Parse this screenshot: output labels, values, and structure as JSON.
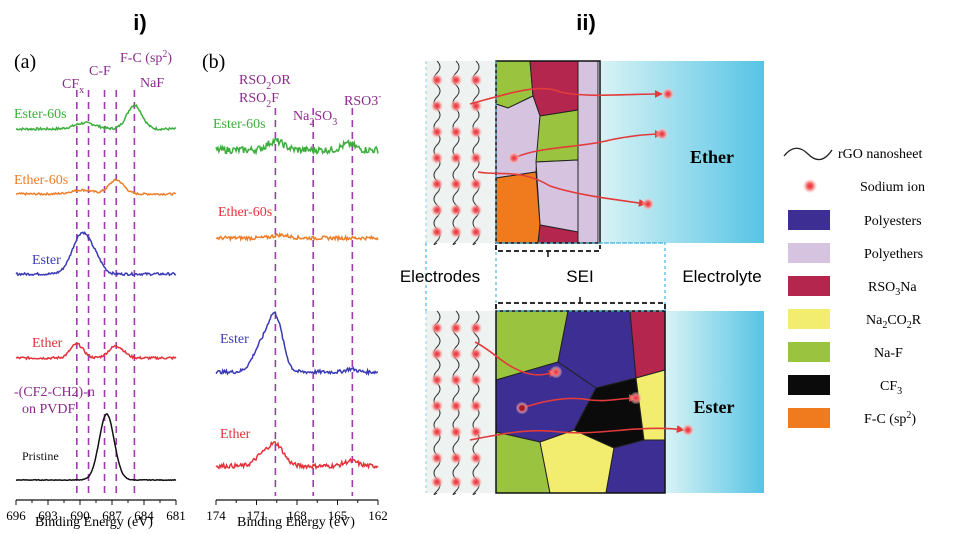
{
  "panel_labels": {
    "left": "i)",
    "right": "ii)"
  },
  "chart_data": [
    {
      "type": "line",
      "subplot": "(a)",
      "xlabel": "Binding Energy (eV)",
      "x_reversed": true,
      "xlim": [
        696,
        681
      ],
      "xticks": [
        "696",
        "693",
        "690",
        "687",
        "684",
        "681"
      ],
      "xtick_values": [
        696,
        693,
        690,
        687,
        684,
        681
      ],
      "reference_lines": [
        {
          "name": "CF_x",
          "label": "CF",
          "sub": "x",
          "x": 690.3
        },
        {
          "name": "C-F",
          "label": "C-F",
          "x": 689.2
        },
        {
          "name": "F-C (sp2)",
          "label": "F-C (sp",
          "sup": "2",
          "tail": ")",
          "x": 686.6
        },
        {
          "name": "NaF",
          "label": "NaF",
          "x": 684.9
        },
        {
          "name": "PVDF",
          "label": "",
          "x": 687.7
        }
      ],
      "series": [
        {
          "name": "Ester-60s",
          "color": "#3cae3c",
          "offset": 0,
          "baseline": 129,
          "peaks": [
            {
              "x": 684.9,
              "h": 24,
              "w": 0.7
            },
            {
              "x": 689.5,
              "h": 6,
              "w": 1.0
            }
          ],
          "noise": 1.2
        },
        {
          "name": "Ether-60s",
          "color": "#ee7e2a",
          "offset": 0,
          "baseline": 194,
          "peaks": [
            {
              "x": 686.6,
              "h": 14,
              "w": 0.7
            },
            {
              "x": 689.8,
              "h": 4,
              "w": 1.0
            }
          ],
          "noise": 1.0
        },
        {
          "name": "Ester",
          "color": "#3a3ab5",
          "offset": 0,
          "baseline": 274,
          "peaks": [
            {
              "x": 689.8,
              "h": 41,
              "w": 0.9
            },
            {
              "x": 688.4,
              "h": 8,
              "w": 0.6
            }
          ],
          "noise": 1.2
        },
        {
          "name": "Ether",
          "color": "#e5323a",
          "offset": 0,
          "baseline": 358,
          "peaks": [
            {
              "x": 690.3,
              "h": 14,
              "w": 0.6
            },
            {
              "x": 686.6,
              "h": 12,
              "w": 0.7
            }
          ],
          "noise": 1.2
        },
        {
          "name": "Pristine",
          "color": "#111111",
          "offset": 0,
          "baseline": 480,
          "peaks": [
            {
              "x": 687.5,
              "h": 66,
              "w": 0.7
            }
          ],
          "noise": 0.3
        }
      ],
      "annotations": {
        "pvdf_line1": "-(CF2-CH2)-n",
        "pvdf_line2": "on PVDF"
      }
    },
    {
      "type": "line",
      "subplot": "(b)",
      "xlabel": "Binding Energy (eV)",
      "x_reversed": true,
      "xlim": [
        174,
        162
      ],
      "xticks": [
        "174",
        "171",
        "168",
        "165",
        "162"
      ],
      "xtick_values": [
        174,
        171,
        168,
        165,
        162
      ],
      "reference_lines": [
        {
          "name": "RSO2OR / RSO2F",
          "x": 169.6
        },
        {
          "name": "Na2SO3",
          "x": 166.8
        },
        {
          "name": "RSO3-",
          "x": 163.9
        }
      ],
      "label_lines": {
        "l1": "RSO",
        "l1_sub": "2",
        "l1_tail": "OR",
        "l2": "RSO",
        "l2_sub": "2",
        "l2_tail": "F",
        "na": "Na",
        "na_sub": "2",
        "na_mid": "SO",
        "na_sub2": "3",
        "rso3": "RSO3"
      },
      "series": [
        {
          "name": "Ester-60s",
          "color": "#3cae3c",
          "baseline": 150,
          "peaks": [
            {
              "x": 169.6,
              "h": 9,
              "w": 0.6
            },
            {
              "x": 164.2,
              "h": 6,
              "w": 0.5
            }
          ],
          "noise": 3.5
        },
        {
          "name": "Ether-60s",
          "color": "#ee7e2a",
          "baseline": 238,
          "peaks": [
            {
              "x": 169.2,
              "h": 3,
              "w": 0.6
            }
          ],
          "noise": 1.8
        },
        {
          "name": "Ester",
          "color": "#3a3ab5",
          "baseline": 372,
          "peaks": [
            {
              "x": 169.6,
              "h": 54,
              "w": 0.55
            },
            {
              "x": 170.7,
              "h": 24,
              "w": 0.6
            },
            {
              "x": 164.0,
              "h": 3,
              "w": 0.4
            }
          ],
          "noise": 1.8
        },
        {
          "name": "Ether",
          "color": "#e5323a",
          "baseline": 466,
          "peaks": [
            {
              "x": 169.6,
              "h": 22,
              "w": 0.6
            },
            {
              "x": 170.7,
              "h": 8,
              "w": 0.5
            },
            {
              "x": 164.0,
              "h": 5,
              "w": 0.5
            }
          ],
          "noise": 2.2
        }
      ]
    }
  ],
  "schematic": {
    "electrodes": "Electrodes",
    "sei": "SEI",
    "electrolyte": "Electrolyte",
    "ether": "Ether",
    "ester": "Ester",
    "legend": [
      {
        "label": "rGO nanosheet",
        "kind": "wave"
      },
      {
        "label": "Sodium ion",
        "kind": "ion"
      },
      {
        "label": "Polyesters",
        "kind": "box",
        "color": "#3c2e93"
      },
      {
        "label": "Polyethers",
        "kind": "box",
        "color": "#d6c3e0"
      },
      {
        "label": "RSO",
        "sub": "3",
        "tail": "Na",
        "kind": "box",
        "color": "#b5264f"
      },
      {
        "label": "Na",
        "sub": "2",
        "tail": "CO",
        "sub2": "2",
        "tail2": "R",
        "kind": "box",
        "color": "#f2ed6e"
      },
      {
        "label": "Na-F",
        "kind": "box",
        "color": "#9ac43f"
      },
      {
        "label": "CF",
        "sub": "3",
        "kind": "box",
        "color": "#0b0b0b"
      },
      {
        "label": "F-C (sp",
        "sup": "2",
        "tail": ")",
        "kind": "box",
        "color": "#f07b1f"
      }
    ],
    "colors": {
      "polyesters": "#3c2e93",
      "polyethers": "#d6c3e0",
      "rso3na": "#b5264f",
      "na2co2r": "#f2ed6e",
      "naf": "#9ac43f",
      "cf3": "#0b0b0b",
      "fc": "#f07b1f",
      "ion_arrow": "#e23b3b",
      "electrolyte_from": "#cdeef0",
      "electrolyte_to": "#5ec9e6"
    }
  }
}
